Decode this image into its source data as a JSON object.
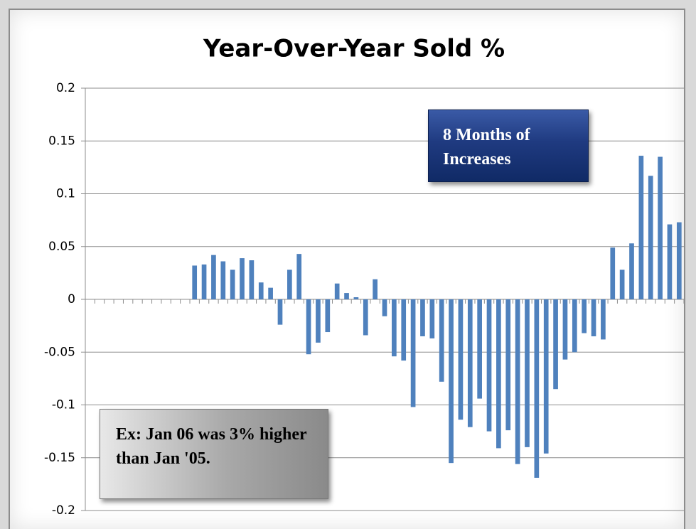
{
  "chart_data": {
    "type": "bar",
    "title": "Year-Over-Year Sold %",
    "categories": [
      null,
      null,
      null,
      null,
      null,
      null,
      null,
      null,
      null,
      null,
      null,
      null,
      null,
      null,
      null,
      null,
      null,
      null,
      null,
      null,
      null,
      null,
      null,
      null,
      null,
      null,
      null,
      null,
      null,
      null,
      null,
      null,
      null,
      null,
      null,
      null,
      null,
      null,
      null,
      null,
      null,
      null,
      null,
      null,
      null,
      null,
      null,
      null,
      null,
      null,
      null,
      null,
      null,
      null,
      null,
      null,
      null,
      null,
      null,
      null,
      null,
      null,
      null
    ],
    "values": [
      null,
      null,
      null,
      null,
      null,
      null,
      null,
      null,
      null,
      null,
      null,
      0.032,
      0.033,
      0.042,
      0.036,
      0.028,
      0.039,
      0.037,
      0.016,
      0.011,
      -0.024,
      0.028,
      0.043,
      -0.052,
      -0.041,
      -0.031,
      0.015,
      0.006,
      0.002,
      -0.034,
      0.019,
      -0.016,
      -0.054,
      -0.058,
      -0.102,
      -0.035,
      -0.037,
      -0.078,
      -0.155,
      -0.114,
      -0.121,
      -0.094,
      -0.125,
      -0.141,
      -0.124,
      -0.156,
      -0.14,
      -0.169,
      -0.146,
      -0.085,
      -0.057,
      -0.05,
      -0.032,
      -0.035,
      -0.038,
      0.049,
      0.028,
      0.053,
      0.136,
      0.117,
      0.135,
      0.071,
      0.073
    ],
    "color": "#4f81bd",
    "ylim": [
      -0.2,
      0.2
    ],
    "yticks": [
      -0.2,
      -0.15,
      -0.1,
      -0.05,
      0,
      0.05,
      0.1,
      0.15,
      0.2
    ],
    "grid": true,
    "annotations": [
      "8 Months of Increases",
      "Ex: Jan 06 was 3% higher than Jan '05."
    ]
  }
}
